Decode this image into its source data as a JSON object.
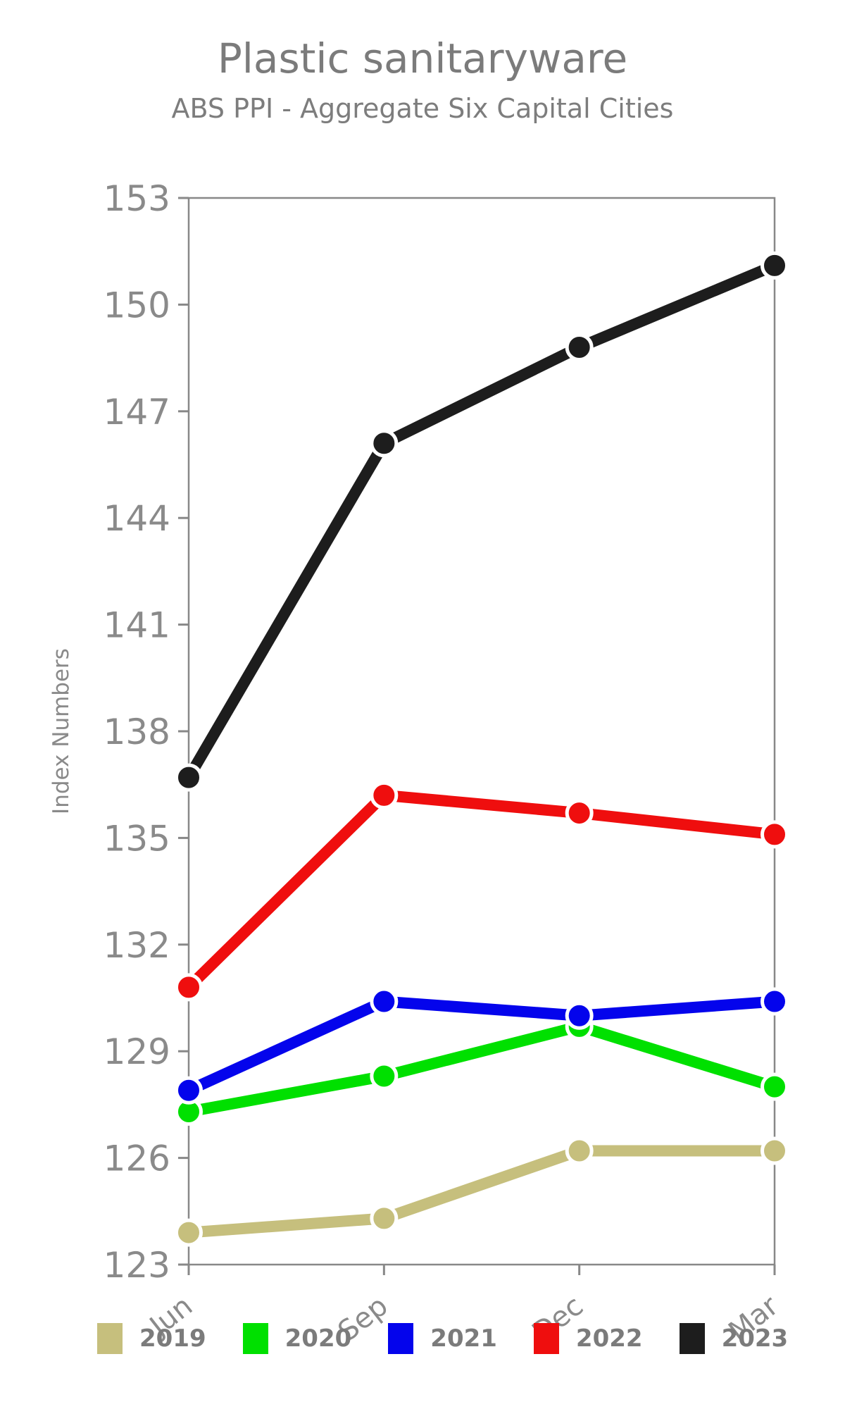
{
  "title": "Plastic sanitaryware",
  "subtitle": "ABS PPI - Aggregate Six Capital Cities",
  "axes": {
    "ylabel": "Index Numbers",
    "ytick_labels": [
      "123",
      "126",
      "129",
      "132",
      "135",
      "138",
      "141",
      "144",
      "147",
      "150",
      "153"
    ],
    "xtick_labels": [
      "Jun",
      "Sep",
      "Dec",
      "Mar"
    ]
  },
  "colors": {
    "axis": "#888888",
    "tick_text": "#8a8a8a",
    "title_text": "#7b7b7b",
    "marker_edge": "#ffffff"
  },
  "chart_data": {
    "type": "line",
    "title": "Plastic sanitaryware",
    "subtitle": "ABS PPI - Aggregate Six Capital Cities",
    "categories": [
      "Jun",
      "Sep",
      "Dec",
      "Mar"
    ],
    "xlabel": "",
    "ylabel": "Index Numbers",
    "ylim": [
      123,
      153
    ],
    "ytick_step": 3,
    "grid": false,
    "legend_position": "bottom",
    "series": [
      {
        "name": "2019",
        "color": "#c6bf7d",
        "values": [
          123.9,
          124.3,
          126.2,
          126.2
        ]
      },
      {
        "name": "2020",
        "color": "#00e000",
        "values": [
          127.3,
          128.3,
          129.7,
          128.0
        ]
      },
      {
        "name": "2021",
        "color": "#0404ec",
        "values": [
          127.9,
          130.4,
          130.0,
          130.4
        ]
      },
      {
        "name": "2022",
        "color": "#ef0e0e",
        "values": [
          130.8,
          136.2,
          135.7,
          135.1
        ]
      },
      {
        "name": "2023",
        "color": "#1d1d1d",
        "values": [
          136.7,
          146.1,
          148.8,
          151.1
        ]
      }
    ]
  }
}
